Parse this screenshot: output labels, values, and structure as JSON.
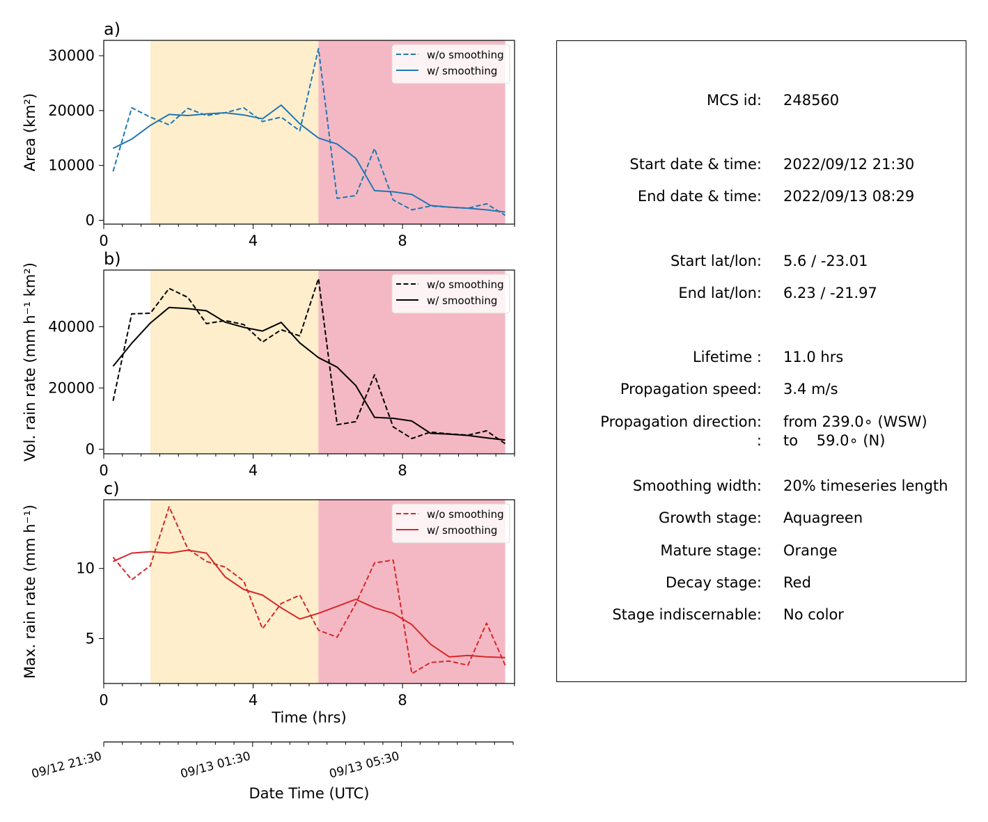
{
  "colors": {
    "mature_band": "#FFEECC",
    "decay_band": "#F4B8C4",
    "area_line": "#1f77b4",
    "volrain_line": "#000000",
    "maxrain_line": "#d62728"
  },
  "legend": {
    "raw": "w/o smoothing",
    "smooth": "w/ smoothing"
  },
  "chart_data": [
    {
      "type": "line",
      "panel_label": "a)",
      "ylabel": "Area  (km²)",
      "xlabel": "",
      "xlim": [
        0,
        11
      ],
      "ylim": [
        -700,
        32800
      ],
      "xticks": [
        0,
        4,
        8
      ],
      "yticks": [
        0,
        10000,
        20000,
        30000
      ],
      "ytick_labels": [
        "0",
        "10000",
        "20000",
        "30000"
      ],
      "legend_position": "top-right",
      "stage_bands": [
        {
          "stage": "mature",
          "from": 1.25,
          "to": 5.75
        },
        {
          "stage": "decay",
          "from": 5.75,
          "to": 10.75
        }
      ],
      "series": [
        {
          "name": "w/o smoothing",
          "style": "dashed",
          "x": [
            0.25,
            0.75,
            1.25,
            1.75,
            2.25,
            2.75,
            3.25,
            3.75,
            4.25,
            4.75,
            5.25,
            5.75,
            6.25,
            6.75,
            7.25,
            7.75,
            8.25,
            8.75,
            9.25,
            9.75,
            10.25,
            10.75
          ],
          "values": [
            8900,
            20500,
            18800,
            17400,
            20400,
            19100,
            19600,
            20500,
            18000,
            18800,
            16300,
            31300,
            4000,
            4500,
            13100,
            3700,
            1900,
            2600,
            2400,
            2200,
            3000,
            900
          ]
        },
        {
          "name": "w/ smoothing",
          "style": "solid",
          "x": [
            0.25,
            0.75,
            1.25,
            1.75,
            2.25,
            2.75,
            3.25,
            3.75,
            4.25,
            4.75,
            5.25,
            5.75,
            6.25,
            6.75,
            7.25,
            7.75,
            8.25,
            8.75,
            9.25,
            9.75,
            10.25,
            10.75
          ],
          "values": [
            13100,
            14800,
            17300,
            19300,
            19100,
            19400,
            19600,
            19200,
            18500,
            21000,
            17600,
            15000,
            13900,
            11300,
            5400,
            5200,
            4700,
            2700,
            2400,
            2200,
            1900,
            1500
          ]
        }
      ]
    },
    {
      "type": "line",
      "panel_label": "b)",
      "ylabel": "Vol. rain rate (mm h⁻¹ km²)",
      "xlabel": "",
      "xlim": [
        0,
        11
      ],
      "ylim": [
        -1500,
        58500
      ],
      "xticks": [
        0,
        4,
        8
      ],
      "yticks": [
        0,
        20000,
        40000
      ],
      "ytick_labels": [
        "0",
        "20000",
        "40000"
      ],
      "legend_position": "top-right",
      "stage_bands": [
        {
          "stage": "mature",
          "from": 1.25,
          "to": 5.75
        },
        {
          "stage": "decay",
          "from": 5.75,
          "to": 10.75
        }
      ],
      "series": [
        {
          "name": "w/o smoothing",
          "style": "dashed",
          "x": [
            0.25,
            0.75,
            1.25,
            1.75,
            2.25,
            2.75,
            3.25,
            3.75,
            4.25,
            4.75,
            5.25,
            5.75,
            6.25,
            6.75,
            7.25,
            7.75,
            8.25,
            8.75,
            9.25,
            9.75,
            10.25,
            10.75
          ],
          "values": [
            15800,
            44200,
            44400,
            52500,
            49600,
            41000,
            42000,
            40700,
            35000,
            39000,
            37000,
            55700,
            8000,
            9000,
            24300,
            7300,
            3500,
            5600,
            5000,
            4600,
            6000,
            1800
          ]
        },
        {
          "name": "w/ smoothing",
          "style": "solid",
          "x": [
            0.25,
            0.75,
            1.25,
            1.75,
            2.25,
            2.75,
            3.25,
            3.75,
            4.25,
            4.75,
            5.25,
            5.75,
            6.25,
            6.75,
            7.25,
            7.75,
            8.25,
            8.75,
            9.25,
            9.75,
            10.25,
            10.75
          ],
          "values": [
            27100,
            34600,
            41200,
            46300,
            45900,
            45200,
            41500,
            39800,
            38600,
            41400,
            34700,
            29900,
            26800,
            20800,
            10400,
            10100,
            9200,
            5200,
            4900,
            4500,
            3700,
            3000
          ]
        }
      ]
    },
    {
      "type": "line",
      "panel_label": "c)",
      "ylabel": "Max. rain rate  (mm h⁻¹)",
      "xlabel": "Time (hrs)",
      "xlim": [
        0,
        11
      ],
      "ylim": [
        1.8,
        14.9
      ],
      "xticks": [
        0,
        4,
        8
      ],
      "yticks": [
        5,
        10
      ],
      "ytick_labels": [
        "5",
        "10"
      ],
      "legend_position": "top-right",
      "stage_bands": [
        {
          "stage": "mature",
          "from": 1.25,
          "to": 5.75
        },
        {
          "stage": "decay",
          "from": 5.75,
          "to": 10.75
        }
      ],
      "series": [
        {
          "name": "w/o smoothing",
          "style": "dashed",
          "x": [
            0.25,
            0.75,
            1.25,
            1.75,
            2.25,
            2.75,
            3.25,
            3.75,
            4.25,
            4.75,
            5.25,
            5.75,
            6.25,
            6.75,
            7.25,
            7.75,
            8.25,
            8.75,
            9.25,
            9.75,
            10.25,
            10.75
          ],
          "values": [
            10.8,
            9.2,
            10.2,
            14.4,
            11.4,
            10.5,
            10.1,
            9.1,
            5.7,
            7.5,
            8.1,
            5.6,
            5.1,
            7.5,
            10.4,
            10.6,
            2.5,
            3.3,
            3.4,
            3.1,
            6.1,
            3.1
          ]
        },
        {
          "name": "w/ smoothing",
          "style": "solid",
          "x": [
            0.25,
            0.75,
            1.25,
            1.75,
            2.25,
            2.75,
            3.25,
            3.75,
            4.25,
            4.75,
            5.25,
            5.75,
            6.25,
            6.75,
            7.25,
            7.75,
            8.25,
            8.75,
            9.25,
            9.75,
            10.25,
            10.75
          ],
          "values": [
            10.5,
            11.1,
            11.2,
            11.1,
            11.3,
            11.1,
            9.4,
            8.5,
            8.1,
            7.2,
            6.4,
            6.8,
            7.3,
            7.8,
            7.2,
            6.8,
            6.0,
            4.6,
            3.7,
            3.8,
            3.7,
            3.65
          ]
        }
      ]
    },
    {
      "type": "line",
      "role": "secondary-time-axis",
      "xlabel": "Date Time (UTC)",
      "xlim": [
        0,
        11
      ],
      "xticks": [
        0,
        4,
        8
      ],
      "xtick_labels": [
        "09/12 21:30",
        "09/13 01:30",
        "09/13 05:30"
      ]
    }
  ],
  "info": {
    "mcs_id": {
      "label": "MCS id:",
      "value": "248560"
    },
    "start_datetime": {
      "label": "Start date & time:",
      "value": "2022/09/12 21:30"
    },
    "end_datetime": {
      "label": "End date & time:",
      "value": "2022/09/13 08:29"
    },
    "start_latlon": {
      "label": "Start lat/lon:",
      "value": "5.6 / -23.01"
    },
    "end_latlon": {
      "label": "End lat/lon:",
      "value": "6.23 / -21.97"
    },
    "lifetime": {
      "label": "Lifetime :",
      "value": "11.0 hrs"
    },
    "speed": {
      "label": "Propagation speed:",
      "value": "3.4 m/s"
    },
    "direction_from": {
      "label": "Propagation direction:",
      "value": "from 239.0∘ (WSW)"
    },
    "direction_to": {
      "label": ":",
      "value": "to    59.0∘ (N)"
    },
    "smoothing": {
      "label": "Smoothing width:",
      "value": "20% timeseries length"
    },
    "growth": {
      "label": "Growth stage:",
      "value": "Aquagreen"
    },
    "mature": {
      "label": "Mature stage:",
      "value": "Orange"
    },
    "decay": {
      "label": "Decay stage:",
      "value": "Red"
    },
    "indiscernable": {
      "label": "Stage indiscernable:",
      "value": "No color"
    }
  }
}
